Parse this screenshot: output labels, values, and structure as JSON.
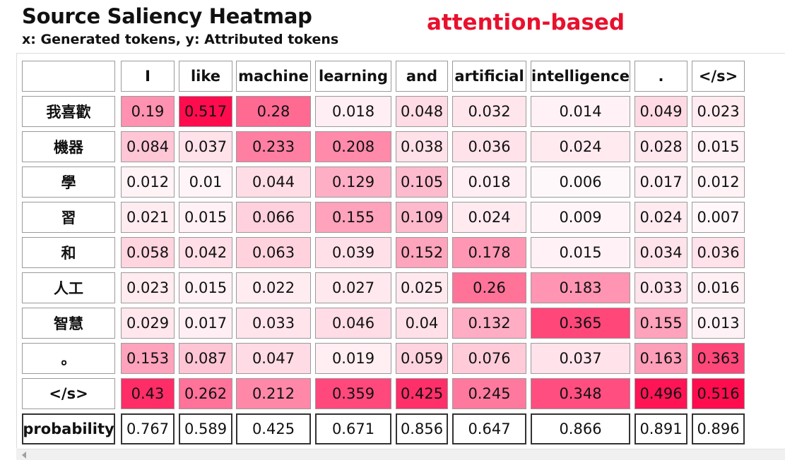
{
  "header": {
    "title": "Source Saliency Heatmap",
    "subtitle": "x: Generated tokens, y: Attributed tokens",
    "method": "attention-based"
  },
  "colors": {
    "method_text": "#e8112d",
    "heat_max": "#ff0c4f",
    "heat_min": "#ffffff"
  },
  "chart_data": {
    "type": "heatmap",
    "title": "Source Saliency Heatmap",
    "xlabel": "Generated tokens",
    "ylabel": "Attributed tokens",
    "x": [
      "I",
      "like",
      "machine",
      "learning",
      "and",
      "artificial",
      "intelligence",
      ".",
      "</s>"
    ],
    "y": [
      "我喜歡",
      "機器",
      "學",
      "習",
      "和",
      "人工",
      "智慧",
      "。",
      "</s>"
    ],
    "values": [
      [
        0.19,
        0.517,
        0.28,
        0.018,
        0.048,
        0.032,
        0.014,
        0.049,
        0.023
      ],
      [
        0.084,
        0.037,
        0.233,
        0.208,
        0.038,
        0.036,
        0.024,
        0.028,
        0.015
      ],
      [
        0.012,
        0.01,
        0.044,
        0.129,
        0.105,
        0.018,
        0.006,
        0.017,
        0.012
      ],
      [
        0.021,
        0.015,
        0.066,
        0.155,
        0.109,
        0.024,
        0.009,
        0.024,
        0.007
      ],
      [
        0.058,
        0.042,
        0.063,
        0.039,
        0.152,
        0.178,
        0.015,
        0.034,
        0.036
      ],
      [
        0.023,
        0.015,
        0.022,
        0.027,
        0.025,
        0.26,
        0.183,
        0.033,
        0.016
      ],
      [
        0.029,
        0.017,
        0.033,
        0.046,
        0.04,
        0.132,
        0.365,
        0.155,
        0.013
      ],
      [
        0.153,
        0.087,
        0.047,
        0.019,
        0.059,
        0.076,
        0.037,
        0.163,
        0.363
      ],
      [
        0.43,
        0.262,
        0.212,
        0.359,
        0.425,
        0.245,
        0.348,
        0.496,
        0.516
      ]
    ],
    "probability_label": "probability",
    "probability": [
      0.767,
      0.589,
      0.425,
      0.671,
      0.856,
      0.647,
      0.866,
      0.891,
      0.896
    ],
    "value_range": [
      0,
      0.517
    ]
  }
}
